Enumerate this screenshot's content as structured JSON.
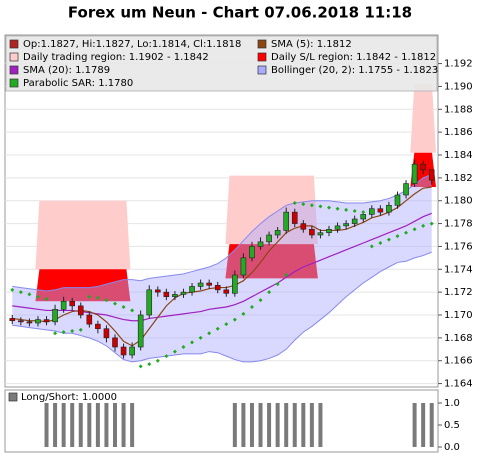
{
  "chart_data": [
    {
      "type": "candlestick",
      "title": "Forex um Neun - Chart 07.06.2018 11:18",
      "candle_label": "Op:1.1827, Hi:1.1827, Lo:1.1814, Cl:1.1818",
      "candle_legend_color": "#b22222",
      "up_color": "#22aa22",
      "down_color": "#cc0000",
      "open": [
        1.1697,
        1.1695,
        1.1694,
        1.1693,
        1.1696,
        1.1694,
        1.1705,
        1.1712,
        1.1708,
        1.17,
        1.1692,
        1.1688,
        1.168,
        1.1672,
        1.1665,
        1.1672,
        1.17,
        1.1722,
        1.172,
        1.1716,
        1.1718,
        1.172,
        1.1725,
        1.1728,
        1.1726,
        1.1722,
        1.1719,
        1.1735,
        1.175,
        1.176,
        1.1764,
        1.177,
        1.1774,
        1.179,
        1.178,
        1.1775,
        1.177,
        1.1772,
        1.1775,
        1.1778,
        1.178,
        1.1784,
        1.1788,
        1.1793,
        1.179,
        1.1796,
        1.1805,
        1.1815,
        1.1832,
        1.1827
      ],
      "high": [
        1.17,
        1.1698,
        1.1697,
        1.1699,
        1.1699,
        1.1709,
        1.1716,
        1.1715,
        1.1711,
        1.1703,
        1.1695,
        1.1691,
        1.1683,
        1.1675,
        1.1676,
        1.1704,
        1.1726,
        1.1725,
        1.1723,
        1.1721,
        1.1723,
        1.1728,
        1.1731,
        1.1731,
        1.1729,
        1.1725,
        1.1739,
        1.1754,
        1.1764,
        1.1768,
        1.1773,
        1.1777,
        1.1794,
        1.1793,
        1.1783,
        1.1778,
        1.1775,
        1.1778,
        1.1781,
        1.1783,
        1.1787,
        1.1791,
        1.1796,
        1.1796,
        1.1799,
        1.1808,
        1.1818,
        1.1836,
        1.1835,
        1.1827
      ],
      "low": [
        1.1692,
        1.1691,
        1.169,
        1.169,
        1.1691,
        1.1691,
        1.1702,
        1.1704,
        1.1697,
        1.1689,
        1.1684,
        1.1676,
        1.1668,
        1.1662,
        1.1662,
        1.1669,
        1.1697,
        1.1716,
        1.1713,
        1.1713,
        1.1715,
        1.1717,
        1.1722,
        1.1723,
        1.1719,
        1.1716,
        1.1716,
        1.1732,
        1.1747,
        1.1757,
        1.1761,
        1.1767,
        1.1771,
        1.1777,
        1.1772,
        1.1767,
        1.1767,
        1.1769,
        1.1772,
        1.1775,
        1.1777,
        1.1781,
        1.1785,
        1.1787,
        1.1787,
        1.1793,
        1.1802,
        1.1812,
        1.1823,
        1.1814
      ],
      "close": [
        1.1695,
        1.1694,
        1.1693,
        1.1696,
        1.1694,
        1.1705,
        1.1712,
        1.1708,
        1.17,
        1.1692,
        1.1688,
        1.168,
        1.1672,
        1.1665,
        1.1672,
        1.17,
        1.1722,
        1.172,
        1.1716,
        1.1718,
        1.172,
        1.1725,
        1.1728,
        1.1726,
        1.1722,
        1.1719,
        1.1735,
        1.175,
        1.176,
        1.1764,
        1.177,
        1.1774,
        1.179,
        1.178,
        1.1775,
        1.177,
        1.1772,
        1.1775,
        1.1778,
        1.178,
        1.1784,
        1.1788,
        1.1793,
        1.179,
        1.1796,
        1.1805,
        1.1815,
        1.1832,
        1.1827,
        1.1818
      ],
      "sma5": {
        "name": "SMA (5): 1.1812",
        "color": "#8b4513",
        "values": [
          1.1697,
          1.1696,
          1.1695,
          1.1695,
          1.1694,
          1.1696,
          1.17,
          1.1703,
          1.1704,
          1.1703,
          1.17,
          1.1694,
          1.1686,
          1.1677,
          1.1673,
          1.1678,
          1.1688,
          1.1698,
          1.1708,
          1.1715,
          1.1719,
          1.172,
          1.1721,
          1.1723,
          1.1724,
          1.1724,
          1.1726,
          1.173,
          1.1737,
          1.1746,
          1.1756,
          1.1764,
          1.1772,
          1.1776,
          1.1778,
          1.1778,
          1.1774,
          1.1774,
          1.1774,
          1.1775,
          1.1778,
          1.1781,
          1.1785,
          1.1787,
          1.179,
          1.1794,
          1.18,
          1.1806,
          1.1811,
          1.1812
        ]
      },
      "sma20": {
        "name": "SMA (20): 1.1789",
        "color": "#a020c0",
        "values": [
          1.1708,
          1.1707,
          1.1706,
          1.1705,
          1.1704,
          1.1704,
          1.1704,
          1.1704,
          1.1703,
          1.1702,
          1.1701,
          1.17,
          1.1698,
          1.1696,
          1.1695,
          1.1695,
          1.1697,
          1.1698,
          1.1699,
          1.17,
          1.1701,
          1.1702,
          1.1703,
          1.1705,
          1.1706,
          1.1707,
          1.1709,
          1.1712,
          1.1716,
          1.172,
          1.1724,
          1.1728,
          1.1733,
          1.1738,
          1.1742,
          1.1745,
          1.1748,
          1.1751,
          1.1754,
          1.1757,
          1.176,
          1.1763,
          1.1766,
          1.1769,
          1.1772,
          1.1775,
          1.1778,
          1.1782,
          1.1786,
          1.1789
        ]
      },
      "bollinger": {
        "name": "Bollinger (20, 2): 1.1755 - 1.1823",
        "color": "#aaaaff",
        "upper": [
          1.1725,
          1.1724,
          1.1723,
          1.1722,
          1.1721,
          1.1722,
          1.1724,
          1.1724,
          1.1724,
          1.1724,
          1.1725,
          1.1727,
          1.1729,
          1.1731,
          1.1731,
          1.173,
          1.1732,
          1.1733,
          1.1734,
          1.1735,
          1.1736,
          1.1738,
          1.174,
          1.1742,
          1.1745,
          1.175,
          1.1757,
          1.1765,
          1.1773,
          1.178,
          1.1786,
          1.1791,
          1.1796,
          1.1798,
          1.1799,
          1.18,
          1.18,
          1.18,
          1.1799,
          1.1798,
          1.1798,
          1.1798,
          1.1799,
          1.18,
          1.1802,
          1.1805,
          1.1809,
          1.1814,
          1.182,
          1.1823
        ],
        "lower": [
          1.1691,
          1.169,
          1.1689,
          1.1688,
          1.1687,
          1.1686,
          1.1684,
          1.1684,
          1.1682,
          1.168,
          1.1677,
          1.1673,
          1.1667,
          1.1661,
          1.1659,
          1.166,
          1.1662,
          1.1663,
          1.1664,
          1.1665,
          1.1666,
          1.1666,
          1.1666,
          1.1668,
          1.1667,
          1.1664,
          1.1661,
          1.1659,
          1.1659,
          1.166,
          1.1662,
          1.1665,
          1.167,
          1.1678,
          1.1685,
          1.169,
          1.1696,
          1.1702,
          1.1709,
          1.1716,
          1.1722,
          1.1728,
          1.1733,
          1.1738,
          1.1742,
          1.1746,
          1.1747,
          1.175,
          1.1752,
          1.1755
        ]
      },
      "sar": {
        "name": "Parabolic SAR: 1.1780",
        "color": "#22aa22",
        "values": [
          1.1722,
          1.172,
          1.1718,
          1.1716,
          1.1714,
          1.1684,
          1.1685,
          1.1686,
          1.1687,
          1.1716,
          1.1715,
          1.1713,
          1.171,
          1.1707,
          1.1704,
          1.1655,
          1.1657,
          1.166,
          1.1664,
          1.1668,
          1.1672,
          1.1676,
          1.168,
          1.1684,
          1.1688,
          1.1692,
          1.1696,
          1.1701,
          1.1707,
          1.1713,
          1.172,
          1.1727,
          1.1735,
          1.1798,
          1.1797,
          1.1796,
          1.1795,
          1.1794,
          1.1793,
          1.1792,
          1.1791,
          1.179,
          1.176,
          1.1763,
          1.1766,
          1.1769,
          1.1772,
          1.1775,
          1.1778,
          1.178
        ]
      },
      "trade_region": {
        "name": "Daily trading region: 1.1902 - 1.1842",
        "color": "#ffcccc"
      },
      "sl_region": {
        "name": "Daily S/L region: 1.1842 - 1.1812",
        "color": "#ff0000"
      },
      "regions": [
        {
          "start": 3.2,
          "end": 14.3,
          "trade": [
            1.18,
            1.174
          ],
          "sl": [
            1.174,
            1.1712
          ]
        },
        {
          "start": 25.4,
          "end": 36.2,
          "trade": [
            1.1822,
            1.1762
          ],
          "sl": [
            1.1762,
            1.1732
          ]
        },
        {
          "start": 47,
          "end": 50,
          "trade": [
            1.1902,
            1.1842
          ],
          "sl": [
            1.1842,
            1.1812
          ]
        }
      ],
      "ylim": [
        1.1637,
        1.1945
      ],
      "yticks": [
        1.164,
        1.166,
        1.168,
        {
          "value": 1.17,
          "label": "1.170"
        },
        1.172,
        1.174,
        1.176,
        1.178,
        {
          "value": 1.18,
          "label": "1.180"
        },
        1.182,
        1.184,
        1.186,
        1.188,
        {
          "value": 1.19,
          "label": "1.190"
        },
        1.192
      ],
      "grid": true
    },
    {
      "type": "bar",
      "title": "Long/Short: 1.0000",
      "color": "#7a7a7a",
      "values": [
        0,
        0,
        0,
        0,
        1,
        1,
        1,
        1,
        1,
        1,
        1,
        1,
        1,
        1,
        1,
        0,
        0,
        0,
        0,
        0,
        0,
        0,
        0,
        0,
        0,
        0,
        1,
        1,
        1,
        1,
        1,
        1,
        1,
        1,
        1,
        1,
        1,
        0,
        0,
        0,
        0,
        0,
        0,
        0,
        0,
        0,
        0,
        1,
        1,
        1
      ],
      "ylim": [
        0,
        1
      ],
      "yticks": [
        {
          "value": 0,
          "label": "0.0"
        },
        {
          "value": 0.5,
          "label": "0.5"
        },
        {
          "value": 1,
          "label": "1.0"
        }
      ]
    }
  ]
}
